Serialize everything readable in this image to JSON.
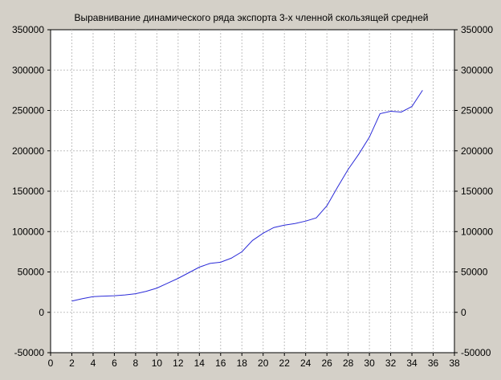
{
  "chart_data": {
    "type": "line",
    "title": "Выравнивание динамического ряда экспорта 3-х членной скользящей средней",
    "xlabel": "",
    "ylabel": "",
    "xlim": [
      0,
      38
    ],
    "ylim": [
      -50000,
      350000
    ],
    "x_ticks": [
      "0",
      "2",
      "4",
      "6",
      "8",
      "10",
      "12",
      "14",
      "16",
      "18",
      "20",
      "22",
      "24",
      "26",
      "28",
      "30",
      "32",
      "34",
      "36",
      "38"
    ],
    "y_ticks_left": [
      "350000",
      "300000",
      "250000",
      "200000",
      "150000",
      "100000",
      "50000",
      "0",
      "-50000"
    ],
    "y_ticks_right": [
      "350000",
      "300000",
      "250000",
      "200000",
      "150000",
      "100000",
      "50000",
      "0",
      "-50000"
    ],
    "grid": "on",
    "legend": "none",
    "colors": {
      "background": "#d4d0c8",
      "plot_area": "#ffffff",
      "grid": "#c0c0c0",
      "line": "#2b2bd8"
    },
    "series": [
      {
        "x": [
          2,
          3,
          4,
          5,
          6,
          7,
          8,
          9,
          10,
          11,
          12,
          13,
          14,
          15,
          16,
          17,
          18,
          19,
          20,
          21,
          22,
          23,
          24,
          25,
          26,
          27,
          28,
          29,
          30,
          31,
          32,
          33,
          34,
          35
        ],
        "values": [
          14000,
          17000,
          19500,
          20000,
          20500,
          21500,
          23000,
          26000,
          30000,
          36000,
          42000,
          49000,
          56000,
          60500,
          62000,
          67000,
          75000,
          89000,
          98000,
          105000,
          108000,
          110000,
          113000,
          117000,
          132000,
          155000,
          177000,
          196000,
          217000,
          246000,
          249000,
          248000,
          255000,
          275000
        ]
      }
    ]
  }
}
